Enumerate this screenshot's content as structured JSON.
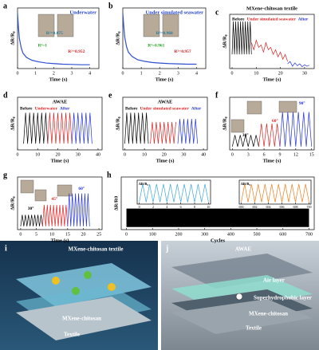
{
  "chart_data": [
    {
      "type": "line",
      "panel": "a",
      "title": "Underwater",
      "title_color": "#2040d0",
      "xlabel": "Time (s)",
      "ylabel": "ΔR/R₀",
      "xlim": [
        0,
        4.5
      ],
      "ylim": [
        -1,
        0.1
      ],
      "xticks": [
        0,
        1,
        2,
        3,
        4
      ],
      "series": [
        {
          "color": "#3050d0",
          "x": [
            0,
            0.05,
            0.1,
            0.2,
            0.3,
            0.5,
            0.8,
            1.2,
            1.6,
            2,
            2.5,
            3,
            3.5,
            4
          ],
          "values": [
            0,
            -0.25,
            -0.45,
            -0.62,
            -0.72,
            -0.8,
            -0.85,
            -0.88,
            -0.9,
            -0.91,
            -0.92,
            -0.925,
            -0.93,
            -0.93
          ]
        }
      ],
      "annotations": [
        {
          "text": "R²=0.875",
          "color": "#2a7a9a"
        },
        {
          "text": "R²=1",
          "color": "#20a020"
        },
        {
          "text": "R²=0.952",
          "color": "#d02020"
        }
      ]
    },
    {
      "type": "line",
      "panel": "b",
      "title": "Under simulated seawater",
      "title_color": "#2040d0",
      "xlabel": "Time (s)",
      "ylabel": "ΔR/R₀",
      "xlim": [
        0,
        4.5
      ],
      "ylim": [
        -1,
        0.1
      ],
      "xticks": [
        0,
        1,
        2,
        3,
        4
      ],
      "series": [
        {
          "color": "#3050d0",
          "x": [
            0,
            0.05,
            0.1,
            0.2,
            0.3,
            0.5,
            0.8,
            1.2,
            1.6,
            2,
            2.5,
            3,
            3.5,
            4
          ],
          "values": [
            0,
            -0.22,
            -0.42,
            -0.6,
            -0.7,
            -0.78,
            -0.84,
            -0.87,
            -0.89,
            -0.9,
            -0.91,
            -0.915,
            -0.92,
            -0.92
          ]
        }
      ],
      "annotations": [
        {
          "text": "R²=0.968",
          "color": "#2a7a9a"
        },
        {
          "text": "R²=0.961",
          "color": "#20a020"
        },
        {
          "text": "R²=0.957",
          "color": "#d02020"
        }
      ]
    },
    {
      "type": "line",
      "panel": "c",
      "title": "MXene-chitosan textile",
      "xlabel": "Time (s)",
      "ylabel": "ΔR/R₀",
      "xlim": [
        -1,
        34
      ],
      "ylim": [
        0,
        1.15
      ],
      "xticks": [
        0,
        10,
        20,
        30
      ],
      "series": [
        {
          "name": "Before",
          "color": "#000000",
          "x": [
            0,
            0.5,
            1,
            1.5,
            2,
            2.5,
            3,
            3.5,
            4,
            4.5,
            5,
            5.5,
            6,
            6.5,
            7,
            7.5,
            8
          ],
          "values": [
            0.3,
            1,
            0.3,
            1,
            0.3,
            1,
            0.3,
            1,
            0.3,
            1,
            0.3,
            1,
            0.3,
            1,
            0.3,
            1,
            0.3
          ]
        },
        {
          "name": "Under simulated seawater",
          "color": "#e02020",
          "x": [
            8,
            9,
            10,
            11,
            12,
            13,
            14,
            15,
            16,
            17,
            18,
            19,
            20,
            21,
            22,
            23
          ],
          "values": [
            0.55,
            0.4,
            0.6,
            0.45,
            0.5,
            0.35,
            0.55,
            0.4,
            0.45,
            0.3,
            0.4,
            0.25,
            0.35,
            0.2,
            0.3,
            0.15
          ]
        },
        {
          "name": "After",
          "color": "#2030e0",
          "x": [
            23,
            24,
            25,
            26,
            27,
            28,
            29,
            30,
            31,
            32
          ],
          "values": [
            0.1,
            0.15,
            0.05,
            0.12,
            0.06,
            0.1,
            0.04,
            0.08,
            0.05,
            0.07
          ]
        }
      ]
    },
    {
      "type": "line",
      "panel": "d",
      "title": "AWAE",
      "xlabel": "Time (s)",
      "ylabel": "ΔR/R₀",
      "xlim": [
        0,
        42
      ],
      "ylim": [
        -0.2,
        1.5
      ],
      "xticks": [
        0,
        10,
        20,
        30,
        40
      ],
      "series": [
        {
          "name": "Before",
          "color": "#000000",
          "x": [
            3,
            4,
            5,
            6,
            7,
            8,
            9,
            10,
            11,
            12,
            13,
            14,
            15
          ],
          "values": [
            0,
            1,
            0,
            1,
            0,
            1,
            0,
            1,
            0,
            1,
            0,
            1,
            0
          ]
        },
        {
          "name": "Underwater",
          "color": "#e02020",
          "x": [
            15,
            16,
            17,
            18,
            19,
            20,
            21,
            22,
            23,
            24,
            25,
            26,
            27
          ],
          "values": [
            0,
            1,
            0,
            1,
            0,
            1,
            0,
            1,
            0,
            1,
            0,
            1,
            0
          ]
        },
        {
          "name": "After",
          "color": "#2030e0",
          "x": [
            27,
            28,
            29,
            30,
            31,
            32,
            33,
            34,
            35,
            36,
            37
          ],
          "values": [
            0,
            1,
            0,
            1,
            0,
            1,
            0,
            1,
            0,
            1,
            0
          ]
        }
      ]
    },
    {
      "type": "line",
      "panel": "e",
      "title": "AWAE",
      "xlabel": "Time (s)",
      "ylabel": "ΔR/R₀",
      "xlim": [
        -1,
        42
      ],
      "ylim": [
        -0.2,
        1.5
      ],
      "xticks": [
        0,
        10,
        20,
        30,
        40
      ],
      "series": [
        {
          "name": "Before",
          "color": "#000000",
          "x": [
            0,
            1,
            2,
            3,
            4,
            5,
            6,
            7,
            8,
            9,
            10,
            11,
            12
          ],
          "values": [
            0,
            1,
            0,
            1,
            0,
            1,
            0,
            1,
            0,
            1,
            0,
            1,
            0
          ]
        },
        {
          "name": "Under simulated seawater",
          "color": "#e02020",
          "x": [
            13,
            14,
            15,
            16,
            17,
            18,
            19,
            20,
            21,
            22,
            23,
            24,
            25,
            26
          ],
          "values": [
            0,
            0.7,
            0,
            0.7,
            0,
            0.7,
            0,
            0.7,
            0,
            0.7,
            0,
            0.7,
            0,
            0.7
          ]
        },
        {
          "name": "After",
          "color": "#2030e0",
          "x": [
            27,
            28,
            29,
            30,
            31,
            32,
            33,
            34,
            35,
            36,
            37
          ],
          "values": [
            0,
            0.8,
            0,
            0.8,
            0,
            0.8,
            0,
            0.8,
            0,
            0.8,
            0
          ]
        }
      ]
    },
    {
      "type": "line",
      "panel": "f",
      "xlabel": "Time (s)",
      "ylabel": "ΔR/R₀",
      "xlim": [
        -0.5,
        15.5
      ],
      "ylim": [
        -0.1,
        1.5
      ],
      "xticks": [
        0,
        3,
        6,
        9,
        12,
        15
      ],
      "series": [
        {
          "color": "#000000",
          "x": [
            0,
            0.5,
            1,
            1.5,
            2,
            2.5,
            3,
            3.5,
            4,
            4.5,
            5
          ],
          "values": [
            0,
            0.35,
            0,
            0.35,
            0,
            0.35,
            0,
            0.35,
            0,
            0.35,
            0
          ]
        },
        {
          "color": "#e02020",
          "x": [
            5,
            5.5,
            6,
            6.5,
            7,
            7.5,
            8,
            8.5,
            9
          ],
          "values": [
            0,
            0.7,
            0,
            0.7,
            0,
            0.7,
            0,
            0.7,
            0
          ]
        },
        {
          "color": "#2030e0",
          "x": [
            9,
            9.5,
            10,
            10.5,
            11,
            11.5,
            12,
            12.5,
            13,
            13.5,
            14,
            14.5,
            15
          ],
          "values": [
            0,
            1.05,
            0,
            1.05,
            0,
            1.05,
            0,
            1.05,
            0,
            1.05,
            0,
            1.05,
            0
          ]
        }
      ],
      "annotations": [
        {
          "text": "30°",
          "color": "#000000"
        },
        {
          "text": "60°",
          "color": "#e02020"
        },
        {
          "text": "90°",
          "color": "#2030e0"
        }
      ]
    },
    {
      "type": "line",
      "panel": "g",
      "xlabel": "Time (s)",
      "ylabel": "ΔR/R₀",
      "xlim": [
        -1,
        26
      ],
      "ylim": [
        -0.1,
        1.5
      ],
      "xticks": [
        0,
        5,
        10,
        15,
        20,
        25
      ],
      "series": [
        {
          "color": "#000000",
          "x": [
            0,
            0.5,
            1,
            1.5,
            2,
            2.5,
            3,
            3.5,
            4,
            4.5,
            5,
            5.5,
            6,
            6.5,
            7
          ],
          "values": [
            0,
            0.35,
            0,
            0.35,
            0,
            0.35,
            0,
            0.35,
            0,
            0.35,
            0,
            0.35,
            0,
            0.35,
            0
          ]
        },
        {
          "color": "#e02020",
          "x": [
            7,
            7.5,
            8,
            8.5,
            9,
            9.5,
            10,
            10.5,
            11,
            11.5,
            12,
            12.5,
            13,
            13.5,
            14,
            14.5,
            15
          ],
          "values": [
            0,
            0.65,
            0,
            0.65,
            0,
            0.65,
            0,
            0.65,
            0,
            0.65,
            0,
            0.65,
            0,
            0.65,
            0,
            0.65,
            0
          ]
        },
        {
          "color": "#2030e0",
          "x": [
            15,
            15.5,
            16,
            16.5,
            17,
            17.5,
            18,
            18.5,
            19,
            19.5,
            20,
            20.5,
            21,
            21.5,
            22
          ],
          "values": [
            0,
            1,
            0,
            1,
            0,
            1,
            0,
            1,
            0,
            1,
            0,
            1,
            0,
            1,
            0
          ]
        }
      ],
      "annotations": [
        {
          "text": "30°",
          "color": "#000000"
        },
        {
          "text": "45°",
          "color": "#e02020"
        },
        {
          "text": "60°",
          "color": "#2030e0"
        }
      ]
    },
    {
      "type": "band",
      "panel": "h",
      "xlabel": "Cycles",
      "ylabel": "ΔR/R0",
      "xlim": [
        -20,
        720
      ],
      "ylim": [
        -0.1,
        1.9
      ],
      "xticks": [
        0,
        100,
        200,
        300,
        400,
        500,
        600,
        700
      ],
      "band": {
        "color": "#000000",
        "x": [
          0,
          700
        ],
        "upper": [
          0.7,
          0.7
        ],
        "lower": [
          0,
          0
        ]
      },
      "insets": [
        {
          "xlabel": "Cycles",
          "ylabel": "ΔR/R₀",
          "color": "#40a8e0",
          "xlim": [
            -0.3,
            10.3
          ],
          "ylim": [
            0,
            1.2
          ],
          "xticks": [
            0,
            2,
            4,
            6,
            8,
            10
          ],
          "x": [
            0,
            0.5,
            1,
            1.5,
            2,
            2.5,
            3,
            3.5,
            4,
            4.5,
            5,
            5.5,
            6,
            6.5,
            7,
            7.5,
            8,
            8.5,
            9,
            9.5,
            10
          ],
          "values": [
            0.1,
            1,
            0.1,
            1,
            0.1,
            1,
            0.1,
            1,
            0.1,
            1,
            0.1,
            1,
            0.1,
            1,
            0.1,
            1,
            0.1,
            1,
            0.1,
            1,
            0.1
          ]
        },
        {
          "xlabel": "Cycles",
          "ylabel": "ΔR/R₀",
          "color": "#f08020",
          "xlim": [
            689.7,
            700.3
          ],
          "ylim": [
            0,
            1.2
          ],
          "xticks": [
            690,
            692,
            694,
            696,
            698,
            700
          ],
          "x": [
            690,
            690.5,
            691,
            691.5,
            692,
            692.5,
            693,
            693.5,
            694,
            694.5,
            695,
            695.5,
            696,
            696.5,
            697,
            697.5,
            698,
            698.5,
            699,
            699.5,
            700
          ],
          "values": [
            0.1,
            1,
            0.1,
            1,
            0.1,
            1,
            0.1,
            1,
            0.1,
            1,
            0.1,
            1,
            0.1,
            1,
            0.1,
            1,
            0.1,
            1,
            0.1,
            1,
            0.1
          ]
        }
      ]
    }
  ],
  "images": [
    {
      "panel": "i",
      "labels": [
        "MXene-chitosan textile",
        "MXene-chitosan",
        "Textile"
      ]
    },
    {
      "panel": "j",
      "labels": [
        "AWAE",
        "Air layer",
        "Superhydrophobic layer",
        "MXene-chitosan",
        "Textile"
      ]
    }
  ]
}
